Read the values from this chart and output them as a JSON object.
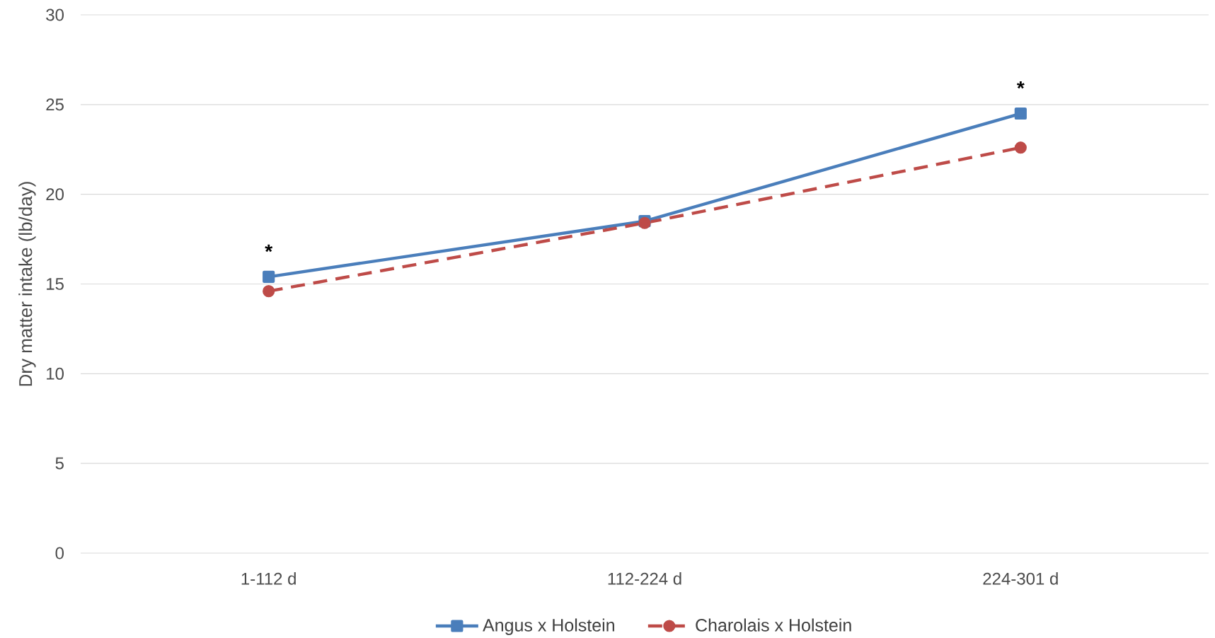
{
  "chart_data": {
    "type": "line",
    "ylabel": "Dry matter intake (lb/day)",
    "categories": [
      "1-112 d",
      "112-224 d",
      "224-301 d"
    ],
    "series": [
      {
        "name": "Angus x Holstein",
        "color": "#4a7ebb",
        "values": [
          15.4,
          18.5,
          24.5
        ],
        "marker": "square",
        "line_style": "solid"
      },
      {
        "name": "Charolais x Holstein",
        "color": "#be4b48",
        "values": [
          14.6,
          18.4,
          22.6
        ],
        "marker": "circle",
        "line_style": "dashed"
      }
    ],
    "annotations": [
      {
        "text": "*",
        "x": "1-112 d",
        "y": 15.4
      },
      {
        "text": "*",
        "x": "224-301 d",
        "y": 24.5
      }
    ],
    "ylim": [
      0,
      30
    ],
    "yticks": [
      0,
      5,
      10,
      15,
      20,
      25,
      30
    ],
    "grid": "y",
    "legend": "bottom"
  }
}
